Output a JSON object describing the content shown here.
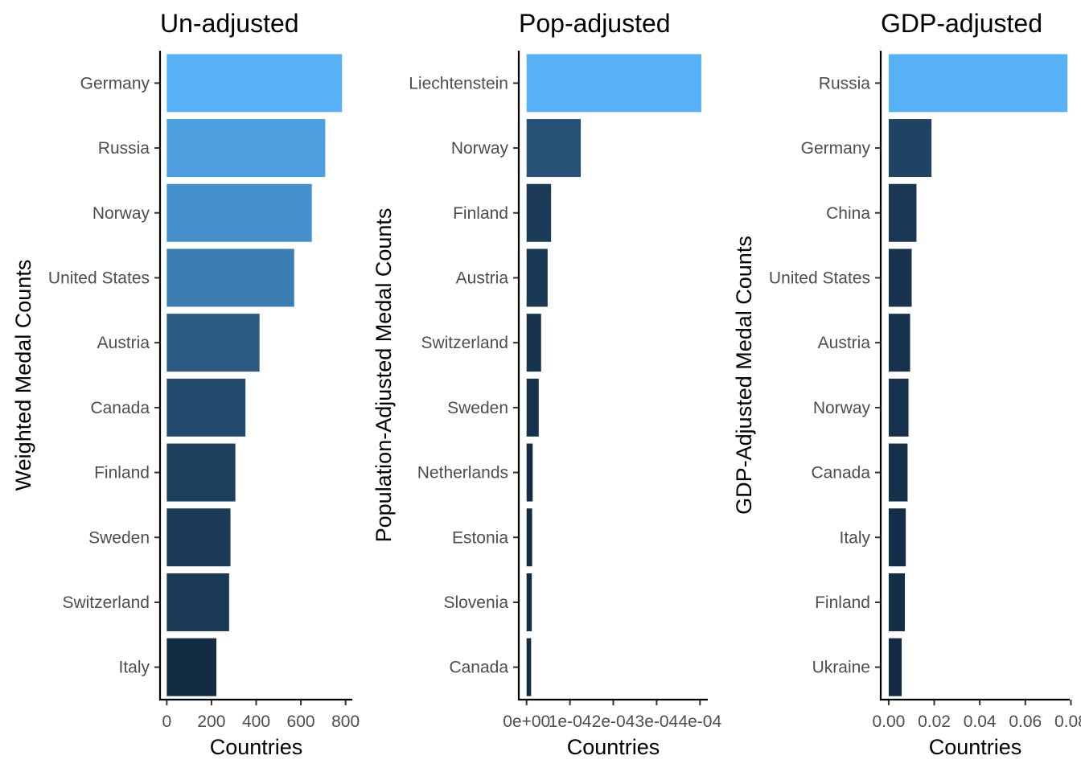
{
  "chart_data": [
    {
      "type": "bar",
      "orientation": "horizontal",
      "title": "Un-adjusted",
      "xlabel": "Countries",
      "ylabel": "Weighted Medal Counts",
      "categories": [
        "Germany",
        "Russia",
        "Norway",
        "United States",
        "Austria",
        "Canada",
        "Finland",
        "Sweden",
        "Switzerland",
        "Italy"
      ],
      "values": [
        784,
        709,
        649,
        570,
        415,
        352,
        307,
        285,
        279,
        222
      ],
      "xlim": [
        -30,
        830
      ],
      "xticks": [
        0,
        200,
        400,
        600,
        800
      ],
      "xtick_labels": [
        "0",
        "200",
        "400",
        "600",
        "800"
      ],
      "color_low": "#132B43",
      "color_high": "#56B1F7"
    },
    {
      "type": "bar",
      "orientation": "horizontal",
      "title": "Pop-adjusted",
      "xlabel": "Countries",
      "ylabel": "Population-Adjusted Medal Counts",
      "categories": [
        "Liechtenstein",
        "Norway",
        "Finland",
        "Austria",
        "Switzerland",
        "Sweden",
        "Netherlands",
        "Estonia",
        "Slovenia",
        "Canada"
      ],
      "values": [
        0.000403,
        0.000125,
        5.65e-05,
        4.85e-05,
        3.35e-05,
        2.8e-05,
        1.4e-05,
        1.28e-05,
        1.2e-05,
        1.05e-05
      ],
      "xlim": [
        -1.8e-05,
        0.000418
      ],
      "xticks": [
        0,
        0.0001,
        0.0002,
        0.0003,
        0.0004
      ],
      "xtick_labels": [
        "0e+00",
        "1e-04",
        "2e-04",
        "3e-04",
        "4e-04"
      ],
      "color_low": "#132B43",
      "color_high": "#56B1F7"
    },
    {
      "type": "bar",
      "orientation": "horizontal",
      "title": "GDP-adjusted",
      "xlabel": "Countries",
      "ylabel": "GDP-Adjusted Medal Counts",
      "categories": [
        "Russia",
        "Germany",
        "China",
        "United States",
        "Austria",
        "Norway",
        "Canada",
        "Italy",
        "Finland",
        "Ukraine"
      ],
      "values": [
        0.0785,
        0.0188,
        0.0122,
        0.0101,
        0.0094,
        0.0087,
        0.0083,
        0.0075,
        0.0071,
        0.0057
      ],
      "xlim": [
        -0.0035,
        0.0795
      ],
      "xticks": [
        0,
        0.02,
        0.04,
        0.06,
        0.08
      ],
      "xtick_labels": [
        "0.00",
        "0.02",
        "0.04",
        "0.06",
        "0.08"
      ],
      "color_low": "#132B43",
      "color_high": "#56B1F7"
    }
  ]
}
